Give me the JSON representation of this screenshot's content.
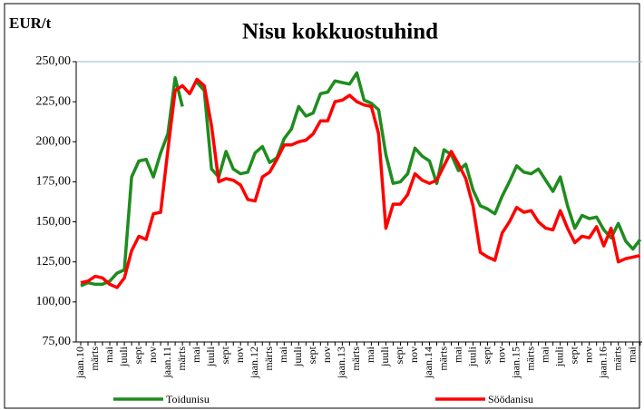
{
  "chart_data": {
    "type": "line",
    "title": "Nisu kokkuostuhind",
    "y_label": "EUR/t",
    "categories": [
      "jaan.10",
      null,
      "märts",
      null,
      "mai",
      null,
      "juuli",
      null,
      "sept",
      null,
      "nov",
      null,
      "jaan.11",
      null,
      "märts",
      null,
      "mai",
      null,
      "juuli",
      null,
      "sept",
      null,
      "nov",
      null,
      "jaan.12",
      null,
      "märts",
      null,
      "mai",
      null,
      "juuli",
      null,
      "sept",
      null,
      "nov",
      null,
      "jaan.13",
      null,
      "märts",
      null,
      "mai",
      null,
      "juuli",
      null,
      "sept",
      null,
      "nov",
      null,
      "jaan.14",
      null,
      "märts",
      null,
      "mai",
      null,
      "juuli",
      null,
      "sept",
      null,
      "nov",
      null,
      "jaan.15",
      null,
      "märts",
      null,
      "mai",
      null,
      "juuli",
      null,
      "sept",
      null,
      "nov",
      null,
      "jaan.16",
      null,
      "märts",
      null,
      "mai",
      null
    ],
    "series": [
      {
        "name": "Toidunisu",
        "color": "#1e8c1e",
        "values": [
          110,
          112,
          111,
          111,
          113,
          118,
          120,
          178,
          188,
          189,
          178,
          193,
          205,
          240,
          222,
          null,
          237,
          232,
          183,
          178,
          194,
          183,
          180,
          181,
          193,
          197,
          187,
          190,
          202,
          208,
          222,
          216,
          218,
          230,
          231,
          238,
          237,
          236,
          243,
          226,
          224,
          220,
          192,
          174,
          175,
          180,
          196,
          191,
          188,
          174,
          195,
          192,
          182,
          186,
          170,
          160,
          158,
          155,
          166,
          175,
          185,
          181,
          180,
          183,
          176,
          169,
          178,
          160,
          146,
          154,
          152,
          153,
          145,
          140,
          149,
          138,
          133,
          139
        ]
      },
      {
        "name": "Söödanisu",
        "color": "#ff0000",
        "values": [
          112,
          113,
          116,
          115,
          111,
          109,
          115,
          132,
          141,
          139,
          155,
          156,
          195,
          232,
          235,
          230,
          239,
          235,
          210,
          175,
          177,
          176,
          173,
          164,
          163,
          178,
          181,
          189,
          198,
          198,
          200,
          201,
          205,
          213,
          213,
          225,
          226,
          229,
          225,
          223,
          222,
          205,
          146,
          161,
          161,
          167,
          180,
          176,
          174,
          176,
          185,
          194,
          186,
          177,
          160,
          131,
          128,
          126,
          143,
          150,
          159,
          156,
          157,
          150,
          146,
          145,
          157,
          146,
          137,
          141,
          140,
          147,
          135,
          146,
          125,
          127,
          128,
          129
        ]
      }
    ],
    "ylim": [
      75,
      250
    ],
    "yticks": [
      {
        "value": 75,
        "label": "75,00"
      },
      {
        "value": 100,
        "label": "100,00"
      },
      {
        "value": 125,
        "label": "125,00"
      },
      {
        "value": 150,
        "label": "150,00"
      },
      {
        "value": 175,
        "label": "175,00"
      },
      {
        "value": 200,
        "label": "200,00"
      },
      {
        "value": 225,
        "label": "225,00"
      },
      {
        "value": 250,
        "label": "250,00"
      }
    ],
    "grid": false
  }
}
